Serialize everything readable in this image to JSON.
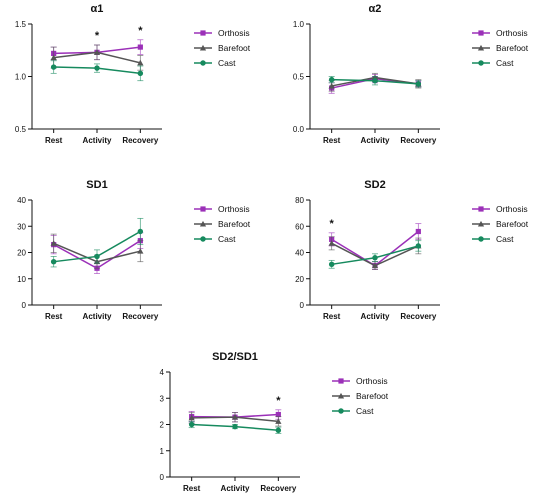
{
  "colors": {
    "orthosis": "#9b30b8",
    "barefoot": "#555555",
    "cast": "#168a5e"
  },
  "chart_data": [
    {
      "type": "line",
      "title": "α1",
      "categories": [
        "Rest",
        "Activity",
        "Recovery"
      ],
      "ylim": [
        0.5,
        1.5
      ],
      "yticks": [
        "0.5",
        "1.0",
        "1.5"
      ],
      "grid": false,
      "legend": "right",
      "series": [
        {
          "name": "Orthosis",
          "values": [
            1.22,
            1.23,
            1.28
          ],
          "errors": [
            0.06,
            0.07,
            0.07
          ]
        },
        {
          "name": "Barefoot",
          "values": [
            1.18,
            1.23,
            1.13
          ],
          "errors": [
            0.1,
            0.07,
            0.07
          ]
        },
        {
          "name": "Cast",
          "values": [
            1.09,
            1.08,
            1.03
          ],
          "errors": [
            0.06,
            0.04,
            0.07
          ]
        }
      ],
      "significance": [
        {
          "category": "Activity",
          "label": "*"
        },
        {
          "category": "Recovery",
          "label": "*"
        }
      ]
    },
    {
      "type": "line",
      "title": "α2",
      "categories": [
        "Rest",
        "Activity",
        "Recovery"
      ],
      "ylim": [
        0.0,
        1.0
      ],
      "yticks": [
        "0.0",
        "0.5",
        "1.0"
      ],
      "grid": false,
      "legend": "right",
      "series": [
        {
          "name": "Orthosis",
          "values": [
            0.39,
            0.48,
            0.43
          ],
          "errors": [
            0.05,
            0.04,
            0.03
          ]
        },
        {
          "name": "Barefoot",
          "values": [
            0.41,
            0.49,
            0.43
          ],
          "errors": [
            0.05,
            0.04,
            0.04
          ]
        },
        {
          "name": "Cast",
          "values": [
            0.47,
            0.46,
            0.43
          ],
          "errors": [
            0.03,
            0.04,
            0.03
          ]
        }
      ],
      "significance": []
    },
    {
      "type": "line",
      "title": "SD1",
      "categories": [
        "Rest",
        "Activity",
        "Recovery"
      ],
      "ylim": [
        0,
        40
      ],
      "yticks": [
        "0",
        "10",
        "20",
        "30",
        "40"
      ],
      "grid": false,
      "legend": "right",
      "series": [
        {
          "name": "Orthosis",
          "values": [
            23,
            14,
            24.5
          ],
          "errors": [
            3.5,
            2,
            3
          ]
        },
        {
          "name": "Barefoot",
          "values": [
            23.5,
            16.5,
            20.5
          ],
          "errors": [
            3.5,
            2.5,
            4
          ]
        },
        {
          "name": "Cast",
          "values": [
            16.5,
            18.5,
            28
          ],
          "errors": [
            2,
            2.5,
            5
          ]
        }
      ],
      "significance": []
    },
    {
      "type": "line",
      "title": "SD2",
      "categories": [
        "Rest",
        "Activity",
        "Recovery"
      ],
      "ylim": [
        0,
        80
      ],
      "yticks": [
        "0",
        "20",
        "40",
        "60",
        "80"
      ],
      "grid": false,
      "legend": "right",
      "series": [
        {
          "name": "Orthosis",
          "values": [
            50,
            30,
            56
          ],
          "errors": [
            5,
            3,
            6
          ]
        },
        {
          "name": "Barefoot",
          "values": [
            47,
            30,
            45
          ],
          "errors": [
            5,
            3,
            6
          ]
        },
        {
          "name": "Cast",
          "values": [
            31,
            36,
            45
          ],
          "errors": [
            3,
            3,
            4
          ]
        }
      ],
      "significance": [
        {
          "category": "Rest",
          "label": "*"
        }
      ]
    },
    {
      "type": "line",
      "title": "SD2/SD1",
      "categories": [
        "Rest",
        "Activity",
        "Recovery"
      ],
      "ylim": [
        0,
        4
      ],
      "yticks": [
        "0",
        "1",
        "2",
        "3",
        "4"
      ],
      "grid": false,
      "legend": "right",
      "series": [
        {
          "name": "Orthosis",
          "values": [
            2.3,
            2.28,
            2.38
          ],
          "errors": [
            0.2,
            0.18,
            0.18
          ]
        },
        {
          "name": "Barefoot",
          "values": [
            2.25,
            2.28,
            2.12
          ],
          "errors": [
            0.2,
            0.18,
            0.18
          ]
        },
        {
          "name": "Cast",
          "values": [
            2.0,
            1.92,
            1.78
          ],
          "errors": [
            0.12,
            0.08,
            0.12
          ]
        }
      ],
      "significance": [
        {
          "category": "Recovery",
          "label": "*"
        }
      ]
    }
  ]
}
